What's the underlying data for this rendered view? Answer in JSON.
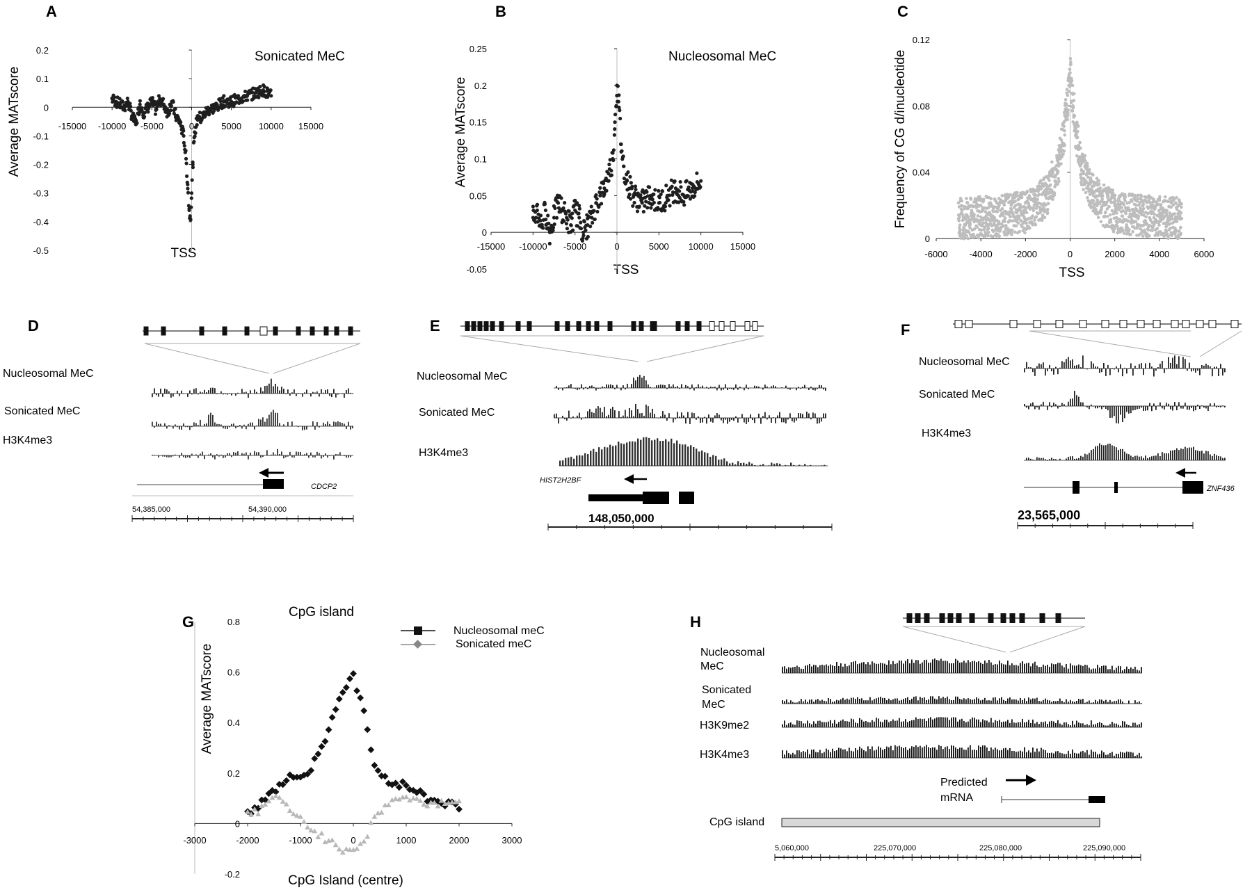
{
  "panels": {
    "A": {
      "label": "A",
      "chart_data": {
        "type": "scatter",
        "title": "Sonicated MeC",
        "xlabel": "TSS",
        "ylabel": "Average MATscore",
        "xlim": [
          -15000,
          15000
        ],
        "ylim": [
          -0.5,
          0.2
        ],
        "x_ticks": [
          -15000,
          -10000,
          -5000,
          0,
          5000,
          10000,
          15000
        ],
        "x_tick_labels": [
          "-15000",
          "-10000",
          "-5000",
          "0",
          "5000",
          "10000",
          "15000"
        ],
        "y_ticks": [
          0.2,
          0.1,
          0,
          -0.1,
          -0.2,
          -0.3,
          -0.4,
          -0.5
        ],
        "y_tick_labels": [
          "0.2",
          "0.1",
          "0",
          "-0.1",
          "-0.2",
          "-0.3",
          "-0.4",
          "-0.5"
        ],
        "points": [
          [
            -10000,
            0.03
          ],
          [
            -9500,
            0.02
          ],
          [
            -9000,
            0.01
          ],
          [
            -8500,
            0.0
          ],
          [
            -8000,
            0.02
          ],
          [
            -7500,
            -0.03
          ],
          [
            -7000,
            -0.06
          ],
          [
            -6500,
            0.01
          ],
          [
            -6000,
            -0.02
          ],
          [
            -5500,
            0.0
          ],
          [
            -5000,
            0.02
          ],
          [
            -4500,
            -0.01
          ],
          [
            -4000,
            0.03
          ],
          [
            -3500,
            0.01
          ],
          [
            -3000,
            -0.02
          ],
          [
            -2500,
            0.02
          ],
          [
            -2000,
            -0.03
          ],
          [
            -1500,
            -0.05
          ],
          [
            -1000,
            -0.1
          ],
          [
            -700,
            -0.18
          ],
          [
            -500,
            -0.27
          ],
          [
            -300,
            -0.36
          ],
          [
            -150,
            -0.39
          ],
          [
            0,
            -0.3
          ],
          [
            150,
            -0.2
          ],
          [
            300,
            -0.12
          ],
          [
            500,
            -0.07
          ],
          [
            800,
            -0.03
          ],
          [
            1200,
            -0.04
          ],
          [
            2000,
            -0.01
          ],
          [
            3000,
            0.0
          ],
          [
            4000,
            0.02
          ],
          [
            5000,
            0.02
          ],
          [
            6000,
            0.03
          ],
          [
            7000,
            0.04
          ],
          [
            8000,
            0.05
          ],
          [
            9000,
            0.06
          ],
          [
            10000,
            0.04
          ]
        ]
      }
    },
    "B": {
      "label": "B",
      "chart_data": {
        "type": "scatter",
        "title": "Nucleosomal MeC",
        "xlabel": "TSS",
        "ylabel": "Average MATscore",
        "xlim": [
          -15000,
          15000
        ],
        "ylim": [
          -0.05,
          0.25
        ],
        "x_ticks": [
          -15000,
          -10000,
          -5000,
          0,
          5000,
          10000,
          15000
        ],
        "x_tick_labels": [
          "-15000",
          "-10000",
          "-5000",
          "0",
          "5000",
          "10000",
          "15000"
        ],
        "y_ticks": [
          0.25,
          0.2,
          0.15,
          0.1,
          0.05,
          0,
          -0.05
        ],
        "y_tick_labels": [
          "0.25",
          "0.2",
          "0.15",
          "0.1",
          "0.05",
          "0",
          "-0.05"
        ],
        "points": [
          [
            -10000,
            0.02
          ],
          [
            -9500,
            0.03
          ],
          [
            -9000,
            0.01
          ],
          [
            -8500,
            0.03
          ],
          [
            -8000,
            0.0
          ],
          [
            -7500,
            0.02
          ],
          [
            -7000,
            0.04
          ],
          [
            -6500,
            0.03
          ],
          [
            -6000,
            0.02
          ],
          [
            -5500,
            0.01
          ],
          [
            -5000,
            0.03
          ],
          [
            -4500,
            0.02
          ],
          [
            -4000,
            0.0
          ],
          [
            -3500,
            0.01
          ],
          [
            -3000,
            0.02
          ],
          [
            -2500,
            0.04
          ],
          [
            -2000,
            0.05
          ],
          [
            -1500,
            0.06
          ],
          [
            -1000,
            0.08
          ],
          [
            -500,
            0.1
          ],
          [
            -250,
            0.15
          ],
          [
            0,
            0.2
          ],
          [
            250,
            0.17
          ],
          [
            500,
            0.12
          ],
          [
            800,
            0.09
          ],
          [
            1200,
            0.07
          ],
          [
            1600,
            0.06
          ],
          [
            2000,
            0.05
          ],
          [
            3000,
            0.04
          ],
          [
            4000,
            0.05
          ],
          [
            5000,
            0.04
          ],
          [
            6000,
            0.05
          ],
          [
            7000,
            0.06
          ],
          [
            8000,
            0.05
          ],
          [
            9000,
            0.06
          ],
          [
            10000,
            0.07
          ]
        ]
      }
    },
    "C": {
      "label": "C",
      "chart_data": {
        "type": "scatter",
        "xlabel": "TSS",
        "ylabel": "Frequency of CG d/inucleotide",
        "xlim": [
          -6000,
          6000
        ],
        "ylim": [
          0,
          0.12
        ],
        "x_ticks": [
          -6000,
          -4000,
          -2000,
          0,
          2000,
          4000,
          6000
        ],
        "x_tick_labels": [
          "-6000",
          "-4000",
          "-2000",
          "0",
          "2000",
          "4000",
          "6000"
        ],
        "y_ticks": [
          0.12,
          0.08,
          0.04,
          0
        ],
        "y_tick_labels": [
          "0.12",
          "0.08",
          "0.04",
          "0"
        ],
        "points": [
          [
            -5000,
            0.012
          ],
          [
            -4000,
            0.013
          ],
          [
            -3000,
            0.014
          ],
          [
            -2000,
            0.016
          ],
          [
            -1500,
            0.02
          ],
          [
            -1000,
            0.027
          ],
          [
            -500,
            0.045
          ],
          [
            -250,
            0.065
          ],
          [
            0,
            0.1
          ],
          [
            250,
            0.065
          ],
          [
            500,
            0.045
          ],
          [
            1000,
            0.027
          ],
          [
            1500,
            0.02
          ],
          [
            2000,
            0.016
          ],
          [
            3000,
            0.014
          ],
          [
            4000,
            0.013
          ],
          [
            5000,
            0.012
          ]
        ]
      }
    },
    "D": {
      "label": "D",
      "tracks": [
        "Nucleosomal MeC",
        "Sonicated MeC",
        "H3K4me3"
      ],
      "gene": "CDCP2",
      "coords": [
        "54,385,000",
        "54,390,000"
      ]
    },
    "E": {
      "label": "E",
      "tracks": [
        "Nucleosomal MeC",
        "Sonicated MeC",
        "H3K4me3"
      ],
      "gene": "HIST2H2BF",
      "coords": [
        "148,050,000"
      ]
    },
    "F": {
      "label": "F",
      "tracks": [
        "Nucleosomal MeC",
        "Sonicated MeC",
        "H3K4me3"
      ],
      "gene": "ZNF436",
      "coords": [
        "23,565,000"
      ]
    },
    "G": {
      "label": "G",
      "chart_data": {
        "type": "line",
        "title": "CpG island",
        "xlabel": "CpG Island (centre)",
        "ylabel": "Average MATscore",
        "xlim": [
          -3000,
          3000
        ],
        "ylim": [
          -0.2,
          0.8
        ],
        "x_ticks": [
          -3000,
          -2000,
          -1000,
          0,
          1000,
          2000,
          3000
        ],
        "x_tick_labels": [
          "-3000",
          "-2000",
          "-1000",
          "0",
          "1000",
          "2000",
          "3000"
        ],
        "y_ticks": [
          0.8,
          0.6,
          0.4,
          0.2,
          0,
          -0.2
        ],
        "y_tick_labels": [
          "0.8",
          "0.6",
          "0.4",
          "0.2",
          "0",
          "-0.2"
        ],
        "legend": "top-right",
        "series": [
          {
            "name": "Nucleosomal meC",
            "color": "#111111",
            "x": [
              -2000,
              -1800,
              -1600,
              -1400,
              -1200,
              -1000,
              -800,
              -600,
              -400,
              -200,
              0,
              200,
              400,
              600,
              800,
              1000,
              1200,
              1400,
              1600,
              1800,
              2000
            ],
            "y": [
              0.05,
              0.06,
              0.12,
              0.15,
              0.19,
              0.18,
              0.22,
              0.3,
              0.42,
              0.53,
              0.58,
              0.45,
              0.22,
              0.18,
              0.16,
              0.15,
              0.13,
              0.1,
              0.09,
              0.08,
              0.06
            ]
          },
          {
            "name": "Sonicated meC",
            "color": "#9a9a9a",
            "x": [
              -2000,
              -1800,
              -1600,
              -1400,
              -1200,
              -1000,
              -800,
              -600,
              -400,
              -200,
              0,
              200,
              400,
              600,
              800,
              1000,
              1200,
              1400,
              1600,
              1800,
              2000
            ],
            "y": [
              0.04,
              0.05,
              0.09,
              0.11,
              0.04,
              0.02,
              -0.02,
              -0.05,
              -0.08,
              -0.1,
              -0.1,
              -0.07,
              0.02,
              0.07,
              0.1,
              0.1,
              0.09,
              0.08,
              0.08,
              0.09,
              0.08
            ]
          }
        ]
      }
    },
    "H": {
      "label": "H",
      "tracks": [
        "Nucleosomal",
        "MeC",
        "Sonicated",
        "MeC",
        "H3K9me2",
        "H3K4me3"
      ],
      "predicted": [
        "Predicted",
        "mRNA"
      ],
      "cpg": "CpG island",
      "coords": [
        "5,060,000",
        "225,070,000",
        "225,080,000",
        "225,090,000"
      ]
    }
  }
}
